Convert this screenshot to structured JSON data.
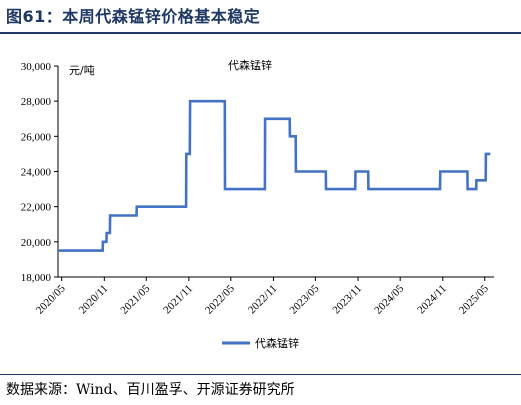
{
  "figure": {
    "title": "图61：本周代森锰锌价格基本稳定",
    "source": "数据来源：Wind、百川盈孚、开源证券研究所"
  },
  "chart_data": {
    "type": "line",
    "title": "代森锰锌",
    "unit": "元/吨",
    "xlabel": "",
    "ylabel": "",
    "ylim": [
      18000,
      30000
    ],
    "yticks": [
      18000,
      20000,
      22000,
      24000,
      26000,
      28000,
      30000
    ],
    "ytick_labels": [
      "18,000",
      "20,000",
      "22,000",
      "24,000",
      "26,000",
      "28,000",
      "30,000"
    ],
    "xlim": [
      "2020-04-15",
      "2025-06-10"
    ],
    "xticks": [
      "2020-05",
      "2020-11",
      "2021-05",
      "2021-11",
      "2022-05",
      "2022-11",
      "2023-05",
      "2023-11",
      "2024-05",
      "2024-11",
      "2025-05"
    ],
    "xtick_labels": [
      "2020/05",
      "2020/11",
      "2021/05",
      "2021/11",
      "2022/05",
      "2022/11",
      "2023/05",
      "2023/11",
      "2024/05",
      "2024/11",
      "2025/05"
    ],
    "grid": false,
    "legend": "bottom-center",
    "line_color": "#4472c4",
    "series": [
      {
        "name": "代森锰锌",
        "points": [
          [
            "2020-04-15",
            19500
          ],
          [
            "2020-10-25",
            19500
          ],
          [
            "2020-10-26",
            20000
          ],
          [
            "2020-11-10",
            20000
          ],
          [
            "2020-11-11",
            20500
          ],
          [
            "2020-11-25",
            20500
          ],
          [
            "2020-11-26",
            21500
          ],
          [
            "2021-03-20",
            21500
          ],
          [
            "2021-03-21",
            22000
          ],
          [
            "2021-10-20",
            22000
          ],
          [
            "2021-10-21",
            25000
          ],
          [
            "2021-11-05",
            25000
          ],
          [
            "2021-11-06",
            28000
          ],
          [
            "2022-04-05",
            28000
          ],
          [
            "2022-04-06",
            23000
          ],
          [
            "2022-09-25",
            23000
          ],
          [
            "2022-09-26",
            27000
          ],
          [
            "2023-01-10",
            27000
          ],
          [
            "2023-01-11",
            26000
          ],
          [
            "2023-02-05",
            26000
          ],
          [
            "2023-02-06",
            24000
          ],
          [
            "2023-06-15",
            24000
          ],
          [
            "2023-06-16",
            23000
          ],
          [
            "2023-10-20",
            23000
          ],
          [
            "2023-10-21",
            24000
          ],
          [
            "2023-12-15",
            24000
          ],
          [
            "2023-12-16",
            23000
          ],
          [
            "2024-10-20",
            23000
          ],
          [
            "2024-10-21",
            24000
          ],
          [
            "2025-02-15",
            24000
          ],
          [
            "2025-02-16",
            23000
          ],
          [
            "2025-03-25",
            23000
          ],
          [
            "2025-03-26",
            23500
          ],
          [
            "2025-05-05",
            23500
          ],
          [
            "2025-05-06",
            25000
          ],
          [
            "2025-05-25",
            25000
          ]
        ]
      }
    ]
  }
}
